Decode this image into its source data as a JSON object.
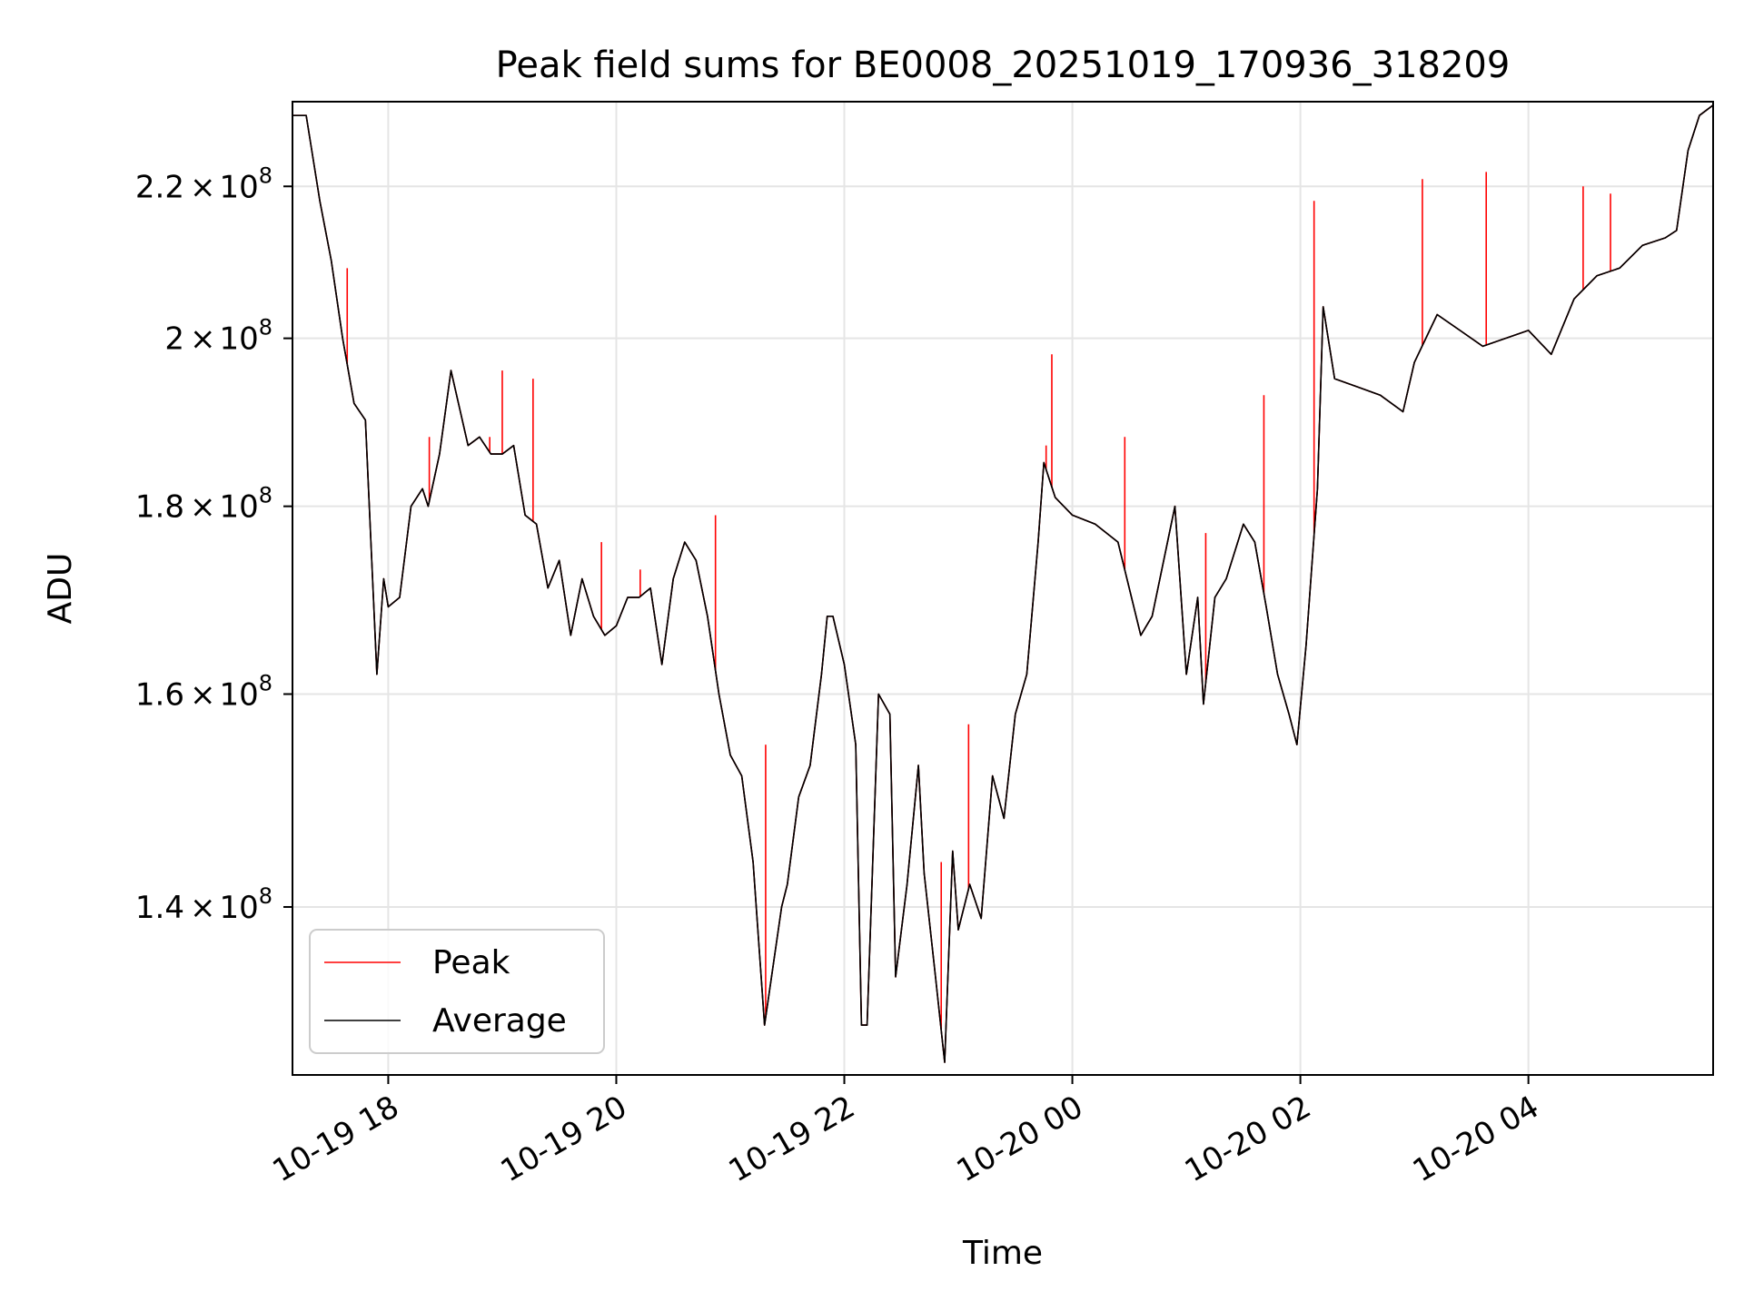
{
  "chart_data": {
    "type": "line",
    "title": "Peak field sums for BE0008_20251019_170936_318209",
    "xlabel": "Time",
    "ylabel": "ADU",
    "yscale": "log",
    "grid": true,
    "legend_position": "lower-left",
    "x_unit": "hours since 2025-10-19 00:00",
    "xlim": [
      17.16,
      29.62
    ],
    "ylim": [
      126000000,
      232000000
    ],
    "x_ticks": [
      {
        "value": 18,
        "label": "10-19 18"
      },
      {
        "value": 20,
        "label": "10-19 20"
      },
      {
        "value": 22,
        "label": "10-19 22"
      },
      {
        "value": 24,
        "label": "10-20 00"
      },
      {
        "value": 26,
        "label": "10-20 02"
      },
      {
        "value": 28,
        "label": "10-20 04"
      }
    ],
    "y_ticks": [
      {
        "value": 140000000,
        "mantissa": "1.4",
        "base": "10",
        "exponent": "8"
      },
      {
        "value": 160000000,
        "mantissa": "1.6",
        "base": "10",
        "exponent": "8"
      },
      {
        "value": 180000000,
        "mantissa": "1.8",
        "base": "10",
        "exponent": "8"
      },
      {
        "value": 200000000,
        "mantissa": "2",
        "base": "10",
        "exponent": "8"
      },
      {
        "value": 220000000,
        "mantissa": "2.2",
        "base": "10",
        "exponent": "8"
      }
    ],
    "series": [
      {
        "name": "Average",
        "color": "#000000",
        "x": [
          17.16,
          17.28,
          17.4,
          17.5,
          17.6,
          17.7,
          17.8,
          17.9,
          17.96,
          18.0,
          18.1,
          18.2,
          18.3,
          18.35,
          18.45,
          18.55,
          18.7,
          18.8,
          18.9,
          19.0,
          19.1,
          19.2,
          19.3,
          19.4,
          19.5,
          19.6,
          19.7,
          19.8,
          19.9,
          20.0,
          20.1,
          20.2,
          20.3,
          20.4,
          20.5,
          20.6,
          20.7,
          20.8,
          20.9,
          21.0,
          21.1,
          21.2,
          21.3,
          21.45,
          21.5,
          21.6,
          21.7,
          21.8,
          21.85,
          21.9,
          22.0,
          22.1,
          22.15,
          22.2,
          22.3,
          22.4,
          22.45,
          22.55,
          22.65,
          22.7,
          22.8,
          22.88,
          22.95,
          23.0,
          23.1,
          23.2,
          23.3,
          23.4,
          23.5,
          23.6,
          23.7,
          23.75,
          23.85,
          24.0,
          24.2,
          24.4,
          24.6,
          24.7,
          24.9,
          25.0,
          25.1,
          25.15,
          25.25,
          25.35,
          25.5,
          25.6,
          25.7,
          25.8,
          25.9,
          25.97,
          26.05,
          26.15,
          26.2,
          26.3,
          26.5,
          26.7,
          26.9,
          27.0,
          27.2,
          27.4,
          27.6,
          27.8,
          28.0,
          28.2,
          28.4,
          28.6,
          28.8,
          29.0,
          29.2,
          29.3,
          29.4,
          29.5,
          29.62
        ],
        "values": [
          230000000,
          230000000,
          218000000,
          210000000,
          200000000,
          192000000,
          190000000,
          162000000,
          172000000,
          169000000,
          170000000,
          180000000,
          182000000,
          180000000,
          186000000,
          196000000,
          187000000,
          188000000,
          186000000,
          186000000,
          187000000,
          179000000,
          178000000,
          171000000,
          174000000,
          166000000,
          172000000,
          168000000,
          166000000,
          167000000,
          170000000,
          170000000,
          171000000,
          163000000,
          172000000,
          176000000,
          174000000,
          168000000,
          160000000,
          154000000,
          152000000,
          144000000,
          130000000,
          140000000,
          142000000,
          150000000,
          153000000,
          162000000,
          168000000,
          168000000,
          163000000,
          155000000,
          130000000,
          130000000,
          160000000,
          158000000,
          134000000,
          142000000,
          153000000,
          143000000,
          134000000,
          127000000,
          145000000,
          138000000,
          142000000,
          139000000,
          152000000,
          148000000,
          158000000,
          162000000,
          176000000,
          185000000,
          181000000,
          179000000,
          178000000,
          176000000,
          166000000,
          168000000,
          180000000,
          162000000,
          170000000,
          159000000,
          170000000,
          172000000,
          178000000,
          176000000,
          169000000,
          162000000,
          158000000,
          155000000,
          165000000,
          182000000,
          204000000,
          195000000,
          194000000,
          193000000,
          191000000,
          197000000,
          203000000,
          201000000,
          199000000,
          200000000,
          201000000,
          198000000,
          205000000,
          208000000,
          209000000,
          212000000,
          213000000,
          214000000,
          225000000,
          230000000,
          231500000
        ]
      },
      {
        "name": "Peak",
        "color": "#ff0000",
        "x": [
          17.16,
          17.28,
          17.4,
          17.5,
          17.6,
          17.7,
          17.8,
          17.9,
          17.96,
          18.0,
          18.1,
          18.2,
          18.3,
          18.35,
          18.45,
          18.55,
          18.7,
          18.8,
          18.9,
          19.0,
          19.1,
          19.2,
          19.3,
          19.4,
          19.5,
          19.6,
          19.7,
          19.8,
          19.9,
          20.0,
          20.1,
          20.2,
          20.3,
          20.4,
          20.5,
          20.6,
          20.7,
          20.8,
          20.9,
          21.0,
          21.1,
          21.2,
          21.3,
          21.45,
          21.5,
          21.6,
          21.7,
          21.8,
          21.85,
          21.9,
          22.0,
          22.1,
          22.15,
          22.2,
          22.3,
          22.4,
          22.45,
          22.55,
          22.65,
          22.7,
          22.8,
          22.88,
          22.95,
          23.0,
          23.1,
          23.2,
          23.3,
          23.4,
          23.5,
          23.6,
          23.7,
          23.75,
          23.85,
          24.0,
          24.2,
          24.4,
          24.6,
          24.7,
          24.9,
          25.0,
          25.1,
          25.15,
          25.25,
          25.35,
          25.5,
          25.6,
          25.7,
          25.8,
          25.9,
          25.97,
          26.05,
          26.15,
          26.2,
          26.3,
          26.5,
          26.7,
          26.9,
          27.0,
          27.2,
          27.4,
          27.6,
          27.8,
          28.0,
          28.2,
          28.4,
          28.6,
          28.8,
          29.0,
          29.2,
          29.3,
          29.4,
          29.5,
          29.62
        ],
        "values": [
          230000000,
          230000000,
          218000000,
          210000000,
          200000000,
          192000000,
          190000000,
          162000000,
          172000000,
          169000000,
          170000000,
          180000000,
          182000000,
          180000000,
          186000000,
          196000000,
          187000000,
          188000000,
          186000000,
          186000000,
          187000000,
          179000000,
          178000000,
          171000000,
          174000000,
          166000000,
          172000000,
          168000000,
          166000000,
          167000000,
          170000000,
          170000000,
          171000000,
          163000000,
          172000000,
          176000000,
          174000000,
          168000000,
          160000000,
          154000000,
          152000000,
          144000000,
          130000000,
          140000000,
          142000000,
          150000000,
          153000000,
          162000000,
          168000000,
          168000000,
          163000000,
          155000000,
          130000000,
          130000000,
          160000000,
          158000000,
          134000000,
          142000000,
          153000000,
          143000000,
          134000000,
          127000000,
          145000000,
          138000000,
          142000000,
          139000000,
          152000000,
          148000000,
          158000000,
          162000000,
          176000000,
          185000000,
          181000000,
          179000000,
          178000000,
          176000000,
          166000000,
          168000000,
          180000000,
          162000000,
          170000000,
          159000000,
          170000000,
          172000000,
          178000000,
          176000000,
          169000000,
          162000000,
          158000000,
          155000000,
          165000000,
          182000000,
          204000000,
          195000000,
          194000000,
          193000000,
          191000000,
          197000000,
          203000000,
          201000000,
          199000000,
          200000000,
          201000000,
          198000000,
          205000000,
          208000000,
          209000000,
          212000000,
          213000000,
          214000000,
          225000000,
          230000000,
          231500000
        ],
        "spikes": [
          {
            "x": 17.64,
            "value": 209000000
          },
          {
            "x": 18.89,
            "value": 188000000
          },
          {
            "x": 18.36,
            "value": 188000000
          },
          {
            "x": 19.0,
            "value": 196000000
          },
          {
            "x": 19.27,
            "value": 195000000
          },
          {
            "x": 19.87,
            "value": 176000000
          },
          {
            "x": 20.21,
            "value": 173000000
          },
          {
            "x": 20.87,
            "value": 179000000
          },
          {
            "x": 21.31,
            "value": 155000000
          },
          {
            "x": 22.85,
            "value": 144000000
          },
          {
            "x": 23.09,
            "value": 157000000
          },
          {
            "x": 23.77,
            "value": 187000000
          },
          {
            "x": 23.82,
            "value": 198000000
          },
          {
            "x": 24.46,
            "value": 188000000
          },
          {
            "x": 25.17,
            "value": 177000000
          },
          {
            "x": 25.68,
            "value": 193000000
          },
          {
            "x": 26.12,
            "value": 218000000
          },
          {
            "x": 27.07,
            "value": 221000000
          },
          {
            "x": 27.63,
            "value": 222000000
          },
          {
            "x": 28.48,
            "value": 220000000
          },
          {
            "x": 28.72,
            "value": 219000000
          }
        ]
      }
    ]
  }
}
